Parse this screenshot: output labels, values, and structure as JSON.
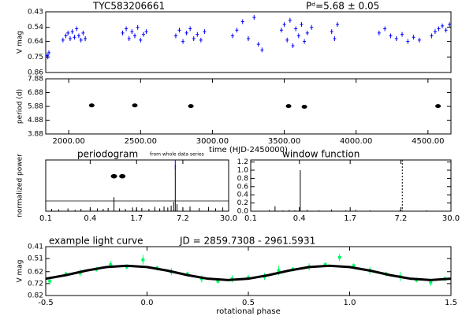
{
  "chart_data": [
    {
      "type": "scatter",
      "title": "TYC583206661",
      "subtitle": "Pᵈ=5.68 ± 0.05",
      "ylabel": "V mag",
      "xlim": [
        1840,
        4660
      ],
      "ylim": [
        0.43,
        0.86
      ],
      "y_inverted": true,
      "yticks": [
        0.43,
        0.54,
        0.64,
        0.75,
        0.86
      ],
      "color": "#0000ff",
      "x": [
        1850,
        1855,
        1862,
        1960,
        1980,
        1995,
        2010,
        2025,
        2040,
        2055,
        2070,
        2085,
        2100,
        2115,
        2375,
        2400,
        2420,
        2440,
        2460,
        2480,
        2500,
        2520,
        2540,
        2745,
        2770,
        2795,
        2820,
        2845,
        2870,
        2895,
        2920,
        2945,
        3140,
        3170,
        3210,
        3250,
        3290,
        3320,
        3345,
        3480,
        3500,
        3520,
        3540,
        3560,
        3580,
        3600,
        3620,
        3640,
        3660,
        3690,
        3830,
        3850,
        3870,
        4160,
        4200,
        4240,
        4280,
        4320,
        4360,
        4400,
        4440,
        4525,
        4550,
        4575,
        4600,
        4625,
        4650
      ],
      "values": [
        0.74,
        0.75,
        0.72,
        0.63,
        0.6,
        0.58,
        0.62,
        0.57,
        0.61,
        0.55,
        0.6,
        0.63,
        0.58,
        0.62,
        0.58,
        0.55,
        0.62,
        0.57,
        0.6,
        0.54,
        0.63,
        0.59,
        0.57,
        0.6,
        0.56,
        0.64,
        0.58,
        0.55,
        0.62,
        0.59,
        0.63,
        0.57,
        0.6,
        0.56,
        0.5,
        0.62,
        0.47,
        0.66,
        0.7,
        0.56,
        0.52,
        0.63,
        0.49,
        0.67,
        0.55,
        0.6,
        0.52,
        0.64,
        0.58,
        0.54,
        0.57,
        0.62,
        0.52,
        0.58,
        0.55,
        0.6,
        0.62,
        0.59,
        0.64,
        0.61,
        0.63,
        0.6,
        0.57,
        0.55,
        0.53,
        0.56,
        0.52
      ]
    },
    {
      "type": "scatter",
      "ylabel": "period (d)",
      "xlabel": "time (HJD-2450000)",
      "xlim": [
        1840,
        4660
      ],
      "xticks": [
        {
          "value": 2000,
          "label": "2000.00"
        },
        {
          "value": 2500,
          "label": "2500.00"
        },
        {
          "value": 3000,
          "label": "3000.00"
        },
        {
          "value": 3500,
          "label": "3500.00"
        },
        {
          "value": 4000,
          "label": "4000.00"
        },
        {
          "value": 4500,
          "label": "4500.00"
        }
      ],
      "ylim": [
        3.88,
        7.88
      ],
      "yticks": [
        3.88,
        4.88,
        5.88,
        6.88,
        7.88
      ],
      "color": "#000000",
      "x": [
        2160,
        2460,
        2850,
        3530,
        3640,
        4570
      ],
      "values": [
        5.95,
        5.95,
        5.9,
        5.9,
        5.85,
        5.9
      ]
    },
    {
      "type": "spectrum",
      "title": "periodogram",
      "subtitle": "from whole data series",
      "ylabel": "normalized power",
      "xlog": true,
      "xlim": [
        0.1,
        30
      ],
      "xticks": [
        0.1,
        0.4,
        1.7,
        7.2,
        {
          "value": 30,
          "label": "30.0"
        }
      ],
      "ylim": [
        0,
        1.1
      ],
      "color": "#000000",
      "x": [
        0.1,
        0.12,
        0.15,
        0.2,
        0.25,
        0.3,
        0.4,
        0.5,
        0.6,
        0.7,
        0.84,
        1.0,
        1.2,
        1.5,
        1.7,
        2.0,
        2.5,
        3.0,
        3.5,
        4.0,
        4.5,
        5.0,
        5.4,
        5.68,
        6.0,
        7.2,
        9,
        12,
        16,
        20,
        25,
        30
      ],
      "values": [
        0.03,
        0.05,
        0.04,
        0.06,
        0.03,
        0.05,
        0.04,
        0.06,
        0.05,
        0.07,
        0.3,
        0.06,
        0.05,
        0.08,
        0.06,
        0.07,
        0.05,
        0.09,
        0.06,
        0.1,
        0.08,
        0.12,
        0.2,
        1.0,
        0.15,
        0.08,
        0.1,
        0.07,
        0.09,
        0.06,
        0.08,
        0.05
      ],
      "threshold": 0.22,
      "period_marker": 5.68,
      "marker_color": "#0000ff",
      "markers": {
        "x": [
          0.84,
          1.09
        ],
        "values": [
          0.75,
          0.75
        ]
      }
    },
    {
      "type": "spectrum",
      "title": "window function",
      "xlog": true,
      "xlim": [
        0.1,
        30
      ],
      "xticks": [
        0.1,
        0.4,
        1.7,
        7.2,
        {
          "value": 30,
          "label": "30.0"
        }
      ],
      "ylim": [
        0,
        1.25
      ],
      "yticks": [
        {
          "value": 0,
          "label": "0.0"
        },
        0.2,
        0.4,
        0.6,
        0.8,
        {
          "value": 1,
          "label": "1.0"
        },
        1.2
      ],
      "color": "#000000",
      "x": [
        0.1,
        0.13,
        0.17,
        0.2,
        0.25,
        0.3,
        0.35,
        0.41,
        0.5,
        0.7,
        1.0,
        1.5,
        2.0,
        3.0,
        5.0,
        7.0,
        10,
        15,
        20,
        30
      ],
      "values": [
        0.02,
        0.01,
        0.03,
        0.12,
        0.02,
        0.03,
        0.02,
        1.0,
        0.03,
        0.02,
        0.04,
        0.02,
        0.03,
        0.02,
        0.01,
        0.02,
        0.01,
        0.02,
        0.01,
        0.02
      ],
      "period_marker": 7.5,
      "marker_color": "#000000"
    },
    {
      "type": "phase",
      "title": "example light curve",
      "subtitle": "JD = 2859.7308 - 2961.5931",
      "ylabel": "V mag",
      "xlabel": "rotational phase",
      "xlim": [
        -0.5,
        1.5
      ],
      "xticks": [
        -0.5,
        {
          "value": 0,
          "label": "0.0"
        },
        0.5,
        {
          "value": 1,
          "label": "1.0"
        },
        1.5
      ],
      "ylim": [
        0.41,
        0.82
      ],
      "y_inverted": true,
      "yticks": [
        0.41,
        0.51,
        0.62,
        0.72,
        0.82
      ],
      "color": "#00ff66",
      "x": [
        -0.48,
        -0.4,
        -0.33,
        -0.25,
        -0.18,
        -0.1,
        -0.02,
        0.05,
        0.12,
        0.2,
        0.27,
        0.35,
        0.42,
        0.5,
        0.58,
        0.65,
        0.72,
        0.8,
        0.88,
        0.95,
        1.02,
        1.1,
        1.18,
        1.25,
        1.33,
        1.4,
        1.47
      ],
      "values": [
        0.7,
        0.64,
        0.63,
        0.6,
        0.56,
        0.58,
        0.52,
        0.59,
        0.62,
        0.64,
        0.68,
        0.7,
        0.68,
        0.67,
        0.66,
        0.61,
        0.6,
        0.58,
        0.56,
        0.5,
        0.57,
        0.61,
        0.64,
        0.66,
        0.69,
        0.71,
        0.68
      ],
      "errors": [
        0.03,
        0.02,
        0.03,
        0.02,
        0.03,
        0.02,
        0.04,
        0.02,
        0.03,
        0.02,
        0.03,
        0.02,
        0.03,
        0.02,
        0.03,
        0.04,
        0.02,
        0.03,
        0.02,
        0.03,
        0.02,
        0.03,
        0.02,
        0.04,
        0.02,
        0.03,
        0.02
      ],
      "fit": {
        "color": "#000000",
        "x": [
          -0.5,
          -0.4,
          -0.3,
          -0.2,
          -0.1,
          0,
          0.1,
          0.2,
          0.3,
          0.4,
          0.5,
          0.6,
          0.7,
          0.8,
          0.9,
          1.0,
          1.1,
          1.2,
          1.3,
          1.4,
          1.5
        ],
        "values": [
          0.679,
          0.649,
          0.611,
          0.581,
          0.57,
          0.581,
          0.611,
          0.649,
          0.679,
          0.69,
          0.679,
          0.649,
          0.611,
          0.581,
          0.57,
          0.581,
          0.611,
          0.649,
          0.679,
          0.69,
          0.679
        ]
      }
    }
  ]
}
